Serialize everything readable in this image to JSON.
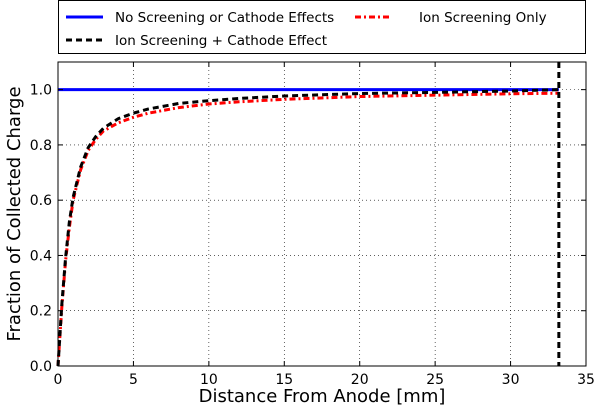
{
  "chart_data": {
    "type": "line",
    "title": "",
    "xlabel": "Distance From Anode [mm]",
    "ylabel": "Fraction of Collected Charge",
    "xlim": [
      0,
      35
    ],
    "ylim": [
      0.0,
      1.1
    ],
    "x_ticks": [
      "0",
      "5",
      "10",
      "15",
      "20",
      "25",
      "30",
      "35"
    ],
    "y_ticks": [
      "0.0",
      "0.2",
      "0.4",
      "0.6",
      "0.8",
      "1.0"
    ],
    "grid": true,
    "legend_position": "above plot",
    "vertical_marker_x": 33.2,
    "series": [
      {
        "name": "No Screening or Cathode Effects",
        "color": "#0000ff",
        "style": "solid",
        "x": [
          0,
          33.2
        ],
        "y": [
          1.0,
          1.0
        ]
      },
      {
        "name": "Ion Screening + Cathode Effect",
        "color": "#000000",
        "style": "dashed",
        "x": [
          0,
          0.25,
          0.5,
          0.75,
          1,
          1.5,
          2,
          2.5,
          3,
          4,
          5,
          6,
          7,
          8,
          10,
          12,
          15,
          20,
          25,
          30,
          33.2
        ],
        "y": [
          0.0,
          0.22,
          0.39,
          0.52,
          0.61,
          0.72,
          0.79,
          0.83,
          0.86,
          0.895,
          0.915,
          0.93,
          0.94,
          0.95,
          0.96,
          0.968,
          0.977,
          0.986,
          0.99,
          0.995,
          1.0
        ]
      },
      {
        "name": "Ion Screening Only",
        "color": "#ff0000",
        "style": "dashdot",
        "x": [
          0,
          0.25,
          0.5,
          0.75,
          1,
          1.5,
          2,
          2.5,
          3,
          4,
          5,
          6,
          7,
          8,
          10,
          12,
          15,
          20,
          25,
          30,
          33.2
        ],
        "y": [
          0.0,
          0.21,
          0.38,
          0.5,
          0.6,
          0.71,
          0.78,
          0.82,
          0.85,
          0.88,
          0.9,
          0.915,
          0.925,
          0.935,
          0.948,
          0.956,
          0.965,
          0.975,
          0.98,
          0.985,
          0.987
        ]
      }
    ]
  }
}
